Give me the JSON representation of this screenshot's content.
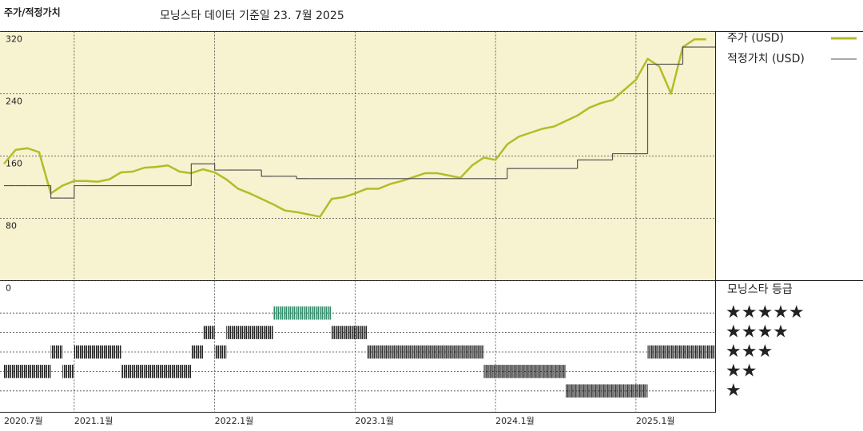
{
  "chart_data": [
    {
      "type": "line",
      "title": "주가/적정가치",
      "subtitle": "모닝스타 데이터 기준일 23. 7월 2025",
      "x": [
        "2020-07",
        "2020-08",
        "2020-09",
        "2020-10",
        "2020-11",
        "2020-12",
        "2021-01",
        "2021-02",
        "2021-03",
        "2021-04",
        "2021-05",
        "2021-06",
        "2021-07",
        "2021-08",
        "2021-09",
        "2021-10",
        "2021-11",
        "2021-12",
        "2022-01",
        "2022-02",
        "2022-03",
        "2022-04",
        "2022-05",
        "2022-06",
        "2022-07",
        "2022-08",
        "2022-09",
        "2022-10",
        "2022-11",
        "2022-12",
        "2023-01",
        "2023-02",
        "2023-03",
        "2023-04",
        "2023-05",
        "2023-06",
        "2023-07",
        "2023-08",
        "2023-09",
        "2023-10",
        "2023-11",
        "2023-12",
        "2024-01",
        "2024-02",
        "2024-03",
        "2024-04",
        "2024-05",
        "2024-06",
        "2024-07",
        "2024-08",
        "2024-09",
        "2024-10",
        "2024-11",
        "2024-12",
        "2025-01",
        "2025-02",
        "2025-03",
        "2025-04",
        "2025-05",
        "2025-06",
        "2025-07"
      ],
      "series": [
        {
          "name": "주가 (USD)",
          "color": "#b3bc28",
          "style": "line",
          "values": [
            150,
            168,
            170,
            165,
            112,
            122,
            128,
            128,
            127,
            130,
            139,
            140,
            145,
            146,
            148,
            140,
            138,
            143,
            139,
            130,
            118,
            112,
            105,
            98,
            90,
            88,
            85,
            82,
            105,
            107,
            112,
            118,
            118,
            124,
            128,
            133,
            138,
            138,
            135,
            132,
            148,
            158,
            155,
            175,
            185,
            190,
            195,
            198,
            205,
            212,
            222,
            228,
            232,
            245,
            258,
            285,
            275,
            240,
            300,
            310,
            310
          ]
        },
        {
          "name": "적정가치 (USD)",
          "color": "#555555",
          "style": "step",
          "values": [
            122,
            122,
            122,
            122,
            106,
            106,
            122,
            122,
            122,
            122,
            122,
            122,
            122,
            122,
            122,
            122,
            150,
            150,
            142,
            142,
            142,
            142,
            134,
            134,
            134,
            131,
            131,
            131,
            131,
            131,
            131,
            131,
            131,
            131,
            131,
            131,
            131,
            131,
            131,
            131,
            131,
            131,
            131,
            144,
            144,
            144,
            144,
            144,
            144,
            155,
            155,
            155,
            163,
            163,
            163,
            278,
            278,
            278,
            300,
            300,
            300
          ]
        }
      ],
      "ylim": [
        0,
        320
      ],
      "yticks": [
        0,
        80,
        160,
        240,
        320
      ],
      "grid": true,
      "background": "#f7f2cf"
    },
    {
      "type": "rating",
      "title": "모닝스타 등급",
      "values": [
        2,
        2,
        2,
        2,
        3,
        2,
        3,
        3,
        3,
        3,
        2,
        2,
        2,
        2,
        2,
        2,
        3,
        4,
        3,
        4,
        4,
        4,
        4,
        5,
        5,
        5,
        5,
        5,
        4,
        4,
        4,
        3,
        3,
        3,
        3,
        3,
        3,
        3,
        3,
        3,
        3,
        2,
        2,
        2,
        2,
        2,
        2,
        2,
        1,
        1,
        1,
        1,
        1,
        1,
        1,
        3,
        3,
        3,
        3,
        3,
        3
      ],
      "color": "#222222",
      "top_color": "#2f8a68",
      "ylim": [
        0.5,
        5.5
      ],
      "yticks": [
        {
          "value": 1,
          "label": "★"
        },
        {
          "value": 2,
          "label": "★★"
        },
        {
          "value": 3,
          "label": "★★★"
        },
        {
          "value": 4,
          "label": "★★★★"
        },
        {
          "value": 5,
          "label": "★★★★★"
        }
      ],
      "xticks": [
        {
          "value": "2020-07",
          "label": "2020.7월"
        },
        {
          "value": "2021-01",
          "label": "2021.1월"
        },
        {
          "value": "2022-01",
          "label": "2022.1월"
        },
        {
          "value": "2023-01",
          "label": "2023.1월"
        },
        {
          "value": "2024-01",
          "label": "2024.1월"
        },
        {
          "value": "2025-01",
          "label": "2025.1월"
        }
      ]
    }
  ]
}
